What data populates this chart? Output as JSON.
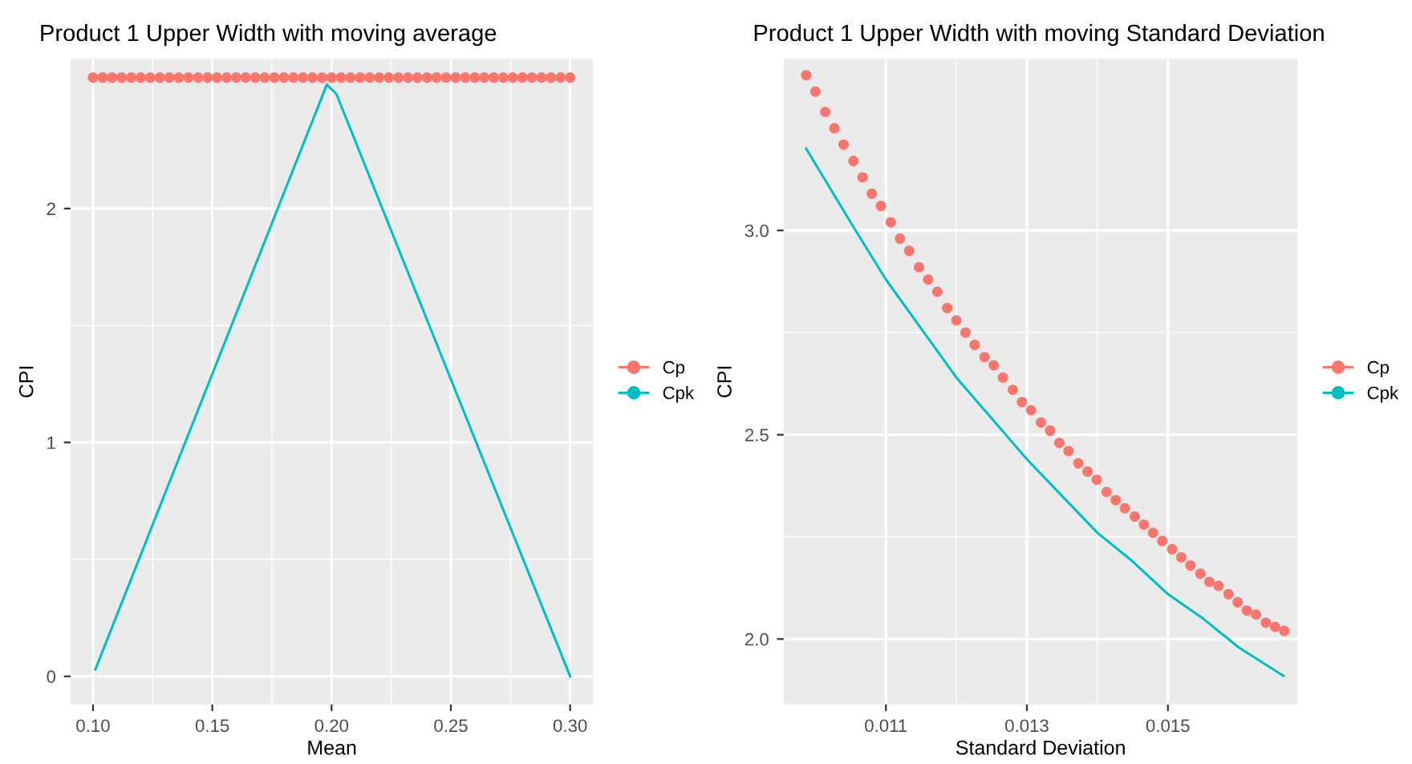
{
  "chart_data": [
    {
      "type": "scatter",
      "title": "Product 1 Upper Width with moving average",
      "xlabel": "Mean",
      "ylabel": "CPI",
      "xlim": [
        0.0906,
        0.3096
      ],
      "ylim": [
        -0.12,
        2.64
      ],
      "xticks": [
        {
          "value": 0.1,
          "label": "0.10"
        },
        {
          "value": 0.15,
          "label": "0.15"
        },
        {
          "value": 0.2,
          "label": "0.20"
        },
        {
          "value": 0.25,
          "label": "0.25"
        },
        {
          "value": 0.3,
          "label": "0.30"
        }
      ],
      "yticks": [
        0,
        1,
        2
      ],
      "grid": true,
      "legend": "right",
      "series": [
        {
          "name": "Cp",
          "color": "#f8766d",
          "x": [
            0.1,
            0.104,
            0.108,
            0.112,
            0.116,
            0.12,
            0.124,
            0.128,
            0.132,
            0.136,
            0.14,
            0.144,
            0.148,
            0.152,
            0.156,
            0.16,
            0.164,
            0.168,
            0.172,
            0.176,
            0.18,
            0.184,
            0.188,
            0.192,
            0.196,
            0.2,
            0.204,
            0.208,
            0.212,
            0.216,
            0.22,
            0.224,
            0.228,
            0.232,
            0.236,
            0.24,
            0.244,
            0.248,
            0.252,
            0.256,
            0.26,
            0.264,
            0.268,
            0.272,
            0.276,
            0.28,
            0.284,
            0.288,
            0.292,
            0.296,
            0.3
          ],
          "values": [
            2.56,
            2.56,
            2.56,
            2.56,
            2.56,
            2.56,
            2.56,
            2.56,
            2.56,
            2.56,
            2.56,
            2.56,
            2.56,
            2.56,
            2.56,
            2.56,
            2.56,
            2.56,
            2.56,
            2.56,
            2.56,
            2.56,
            2.56,
            2.56,
            2.56,
            2.56,
            2.56,
            2.56,
            2.56,
            2.56,
            2.56,
            2.56,
            2.56,
            2.56,
            2.56,
            2.56,
            2.56,
            2.56,
            2.56,
            2.56,
            2.56,
            2.56,
            2.56,
            2.56,
            2.56,
            2.56,
            2.56,
            2.56,
            2.56,
            2.56,
            2.56
          ]
        },
        {
          "name": "Cpk",
          "type": "line",
          "color": "#00bfc4",
          "x": [
            0.101,
            0.198,
            0.202,
            0.3
          ],
          "values": [
            0.03,
            2.53,
            2.49,
            0.0
          ]
        }
      ]
    },
    {
      "type": "scatter",
      "title": "Product 1 Upper Width with moving Standard Deviation",
      "xlabel": "Standard Deviation",
      "ylabel": "CPI",
      "xlim": [
        0.00955,
        0.01684
      ],
      "ylim": [
        1.84,
        3.42
      ],
      "xticks": [
        0.011,
        0.013,
        0.015
      ],
      "yticks": [
        {
          "value": 2.0,
          "label": "2.0"
        },
        {
          "value": 2.5,
          "label": "2.5"
        },
        {
          "value": 3.0,
          "label": "3.0"
        }
      ],
      "grid": true,
      "legend": "right",
      "series": [
        {
          "name": "Cp",
          "color": "#f8766d",
          "x": [
            0.00987,
            0.01,
            0.01014,
            0.01027,
            0.0104,
            0.01054,
            0.01067,
            0.0108,
            0.01093,
            0.01107,
            0.0112,
            0.01133,
            0.01147,
            0.0116,
            0.01173,
            0.01187,
            0.012,
            0.01213,
            0.01226,
            0.0124,
            0.01253,
            0.01266,
            0.0128,
            0.01293,
            0.01306,
            0.0132,
            0.01333,
            0.01346,
            0.01359,
            0.01373,
            0.01386,
            0.01399,
            0.01413,
            0.01426,
            0.01439,
            0.01453,
            0.01466,
            0.01479,
            0.01492,
            0.01506,
            0.01519,
            0.01532,
            0.01546,
            0.01559,
            0.01572,
            0.01586,
            0.01599,
            0.01612,
            0.01625,
            0.01639,
            0.01652,
            0.01665
          ],
          "values": [
            3.38,
            3.34,
            3.29,
            3.25,
            3.21,
            3.17,
            3.13,
            3.09,
            3.06,
            3.02,
            2.98,
            2.95,
            2.91,
            2.88,
            2.85,
            2.81,
            2.78,
            2.75,
            2.72,
            2.69,
            2.67,
            2.64,
            2.61,
            2.58,
            2.56,
            2.53,
            2.51,
            2.48,
            2.46,
            2.43,
            2.41,
            2.39,
            2.36,
            2.34,
            2.32,
            2.3,
            2.28,
            2.26,
            2.24,
            2.22,
            2.2,
            2.18,
            2.16,
            2.14,
            2.13,
            2.11,
            2.09,
            2.07,
            2.06,
            2.04,
            2.03,
            2.02
          ]
        },
        {
          "name": "Cpk",
          "type": "line",
          "color": "#00bfc4",
          "x": [
            0.00987,
            0.0105,
            0.011,
            0.0115,
            0.012,
            0.0125,
            0.013,
            0.0135,
            0.014,
            0.0145,
            0.015,
            0.0155,
            0.016,
            0.01664
          ],
          "values": [
            3.2,
            3.02,
            2.88,
            2.76,
            2.64,
            2.54,
            2.44,
            2.35,
            2.26,
            2.19,
            2.11,
            2.05,
            1.98,
            1.91
          ]
        }
      ]
    }
  ]
}
